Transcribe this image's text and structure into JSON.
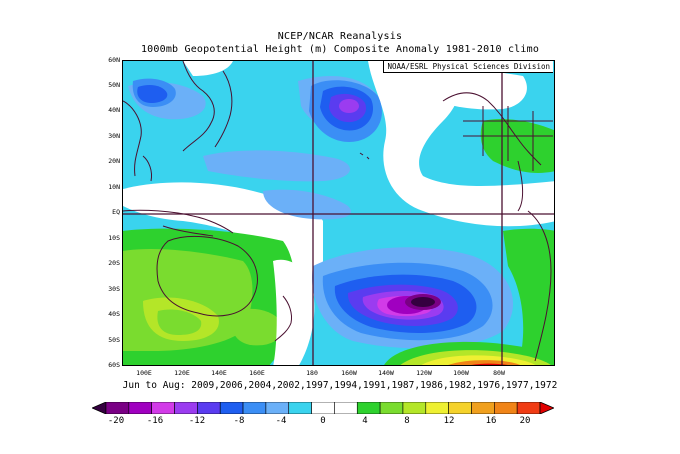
{
  "title": {
    "line1": "NCEP/NCAR Reanalysis",
    "line2": "1000mb Geopotential Height (m) Composite Anomaly 1981-2010 climo"
  },
  "credit": "NOAA/ESRL Physical Sciences Division",
  "latitude_labels": [
    "60N",
    "50N",
    "40N",
    "30N",
    "20N",
    "10N",
    "EQ",
    "10S",
    "20S",
    "30S",
    "40S",
    "50S",
    "60S"
  ],
  "longitude_labels": [
    "100E",
    "120E",
    "140E",
    "160E",
    "180",
    "160W",
    "140W",
    "120W",
    "100W",
    "80W"
  ],
  "footer": "Jun to Aug: 2009,2006,2004,2002,1997,1994,1991,1987,1986,1982,1976,1977,1972",
  "colorbar": {
    "labels": [
      "-20",
      "-16",
      "-12",
      "-8",
      "-4",
      "0",
      "4",
      "8",
      "12",
      "16",
      "20"
    ],
    "colors": [
      "#350040",
      "#7a0085",
      "#a000c0",
      "#d23be8",
      "#9b3cf0",
      "#5a3cf0",
      "#1e5ef0",
      "#3b8ef5",
      "#6bb0f8",
      "#3ad3ee",
      "#ffffff",
      "#ffffff",
      "#2ed12e",
      "#7adc2f",
      "#b4e628",
      "#eef032",
      "#f5d22b",
      "#f0a01e",
      "#f08418",
      "#f03c14",
      "#e00000"
    ]
  },
  "map_colors": {
    "base": "#3ad3ee",
    "white": "#ffffff",
    "light_blue": "#6bb0f8",
    "mid_blue": "#3b8ef5",
    "blue": "#1e5ef0",
    "violet": "#5a3cf0",
    "purple": "#9b3cf0",
    "magenta": "#d23be8",
    "deep": "#a000c0",
    "core": "#350040",
    "green": "#2ed12e",
    "lime": "#7adc2f",
    "yellow_green": "#b4e628",
    "yellow": "#eef032",
    "orange": "#f08418",
    "red": "#f03c14",
    "dark_red": "#e00000",
    "land": "#4a1030"
  }
}
